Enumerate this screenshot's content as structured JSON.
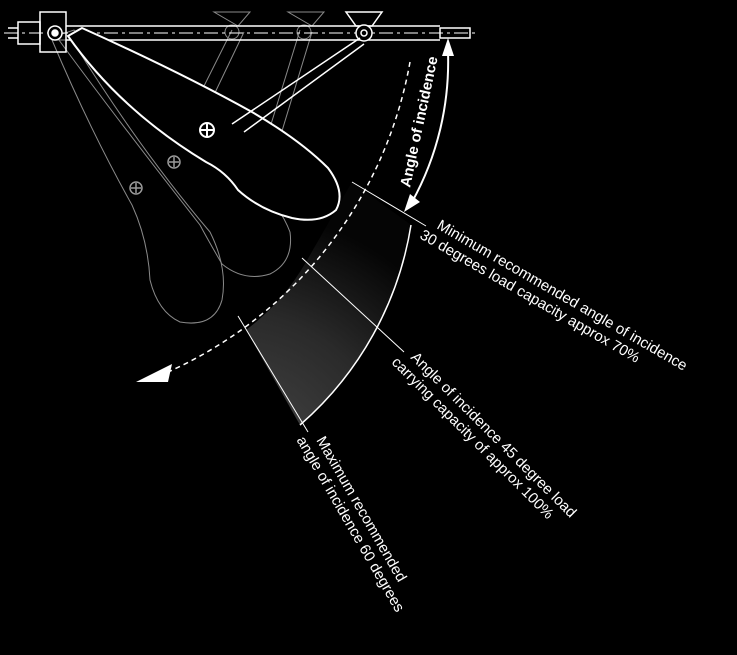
{
  "diagram": {
    "angle_label": "Angle of incidence",
    "labels": {
      "min": {
        "line1": "Minimum recommended angle of incidence",
        "line2": "30 degrees load capacity approx 70%"
      },
      "mid": {
        "line1": "Angle of incidence 45 degree load",
        "line2": "carrying capacity of approx 100%"
      },
      "max": {
        "line1": "Maximum recommended",
        "line2": "angle of incidence 60 degrees"
      }
    },
    "colors": {
      "background": "#000000",
      "lines": "#ffffff",
      "ghost_arm": "#8a8a8a",
      "sector_dark": "#050505",
      "sector_light": "#4a4a4a"
    }
  }
}
